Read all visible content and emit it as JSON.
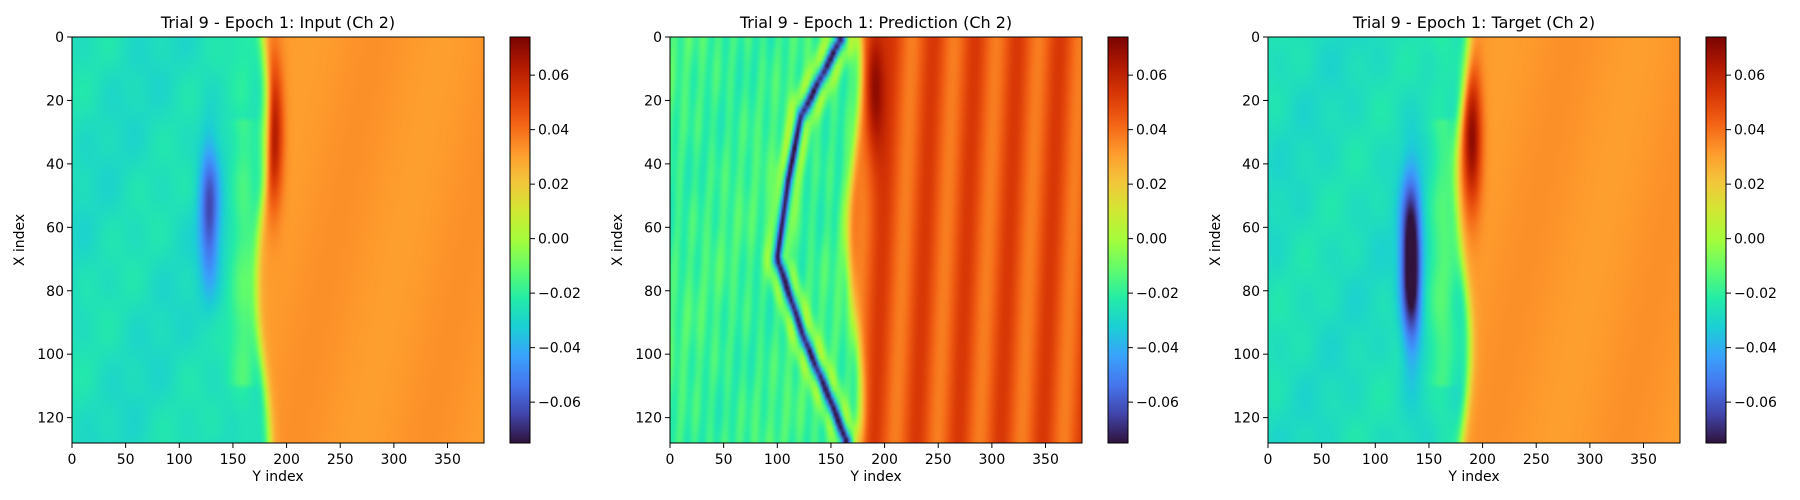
{
  "colors": {
    "turbo_stops": [
      "#30123b",
      "#4145ab",
      "#4675ed",
      "#39a2fc",
      "#1bcfd4",
      "#24eca6",
      "#61fc6c",
      "#a4fc3b",
      "#d1e834",
      "#f3c63a",
      "#fe9b2d",
      "#f36315",
      "#d93806",
      "#b11901",
      "#7a0402"
    ],
    "axis": "#000000",
    "background": "#ffffff"
  },
  "chart_data": [
    {
      "type": "heatmap",
      "title": "Trial 9 - Epoch 1: Input (Ch 2)",
      "xlabel": "Y index",
      "ylabel": "X index",
      "xlim": [
        0,
        384
      ],
      "ylim": [
        128,
        0
      ],
      "xticks": [
        0,
        50,
        100,
        150,
        200,
        250,
        300,
        350
      ],
      "yticks": [
        0,
        20,
        40,
        60,
        80,
        100,
        120
      ],
      "colorbar": {
        "range": [
          -0.075,
          0.074
        ],
        "ticks": [
          "0.06",
          "0.04",
          "0.02",
          "0.00",
          "−0.02",
          "−0.04",
          "−0.06"
        ],
        "tick_values": [
          0.06,
          0.04,
          0.02,
          0.0,
          -0.02,
          -0.04,
          -0.06
        ]
      },
      "field": {
        "background_left": -0.027,
        "background_right": 0.032,
        "front_y": 178,
        "features": [
          {
            "kind": "trough",
            "x_center": 55,
            "y_center": 128,
            "amplitude": -0.035
          },
          {
            "kind": "peak",
            "x_center": 30,
            "y_center": 187,
            "amplitude": 0.04
          },
          {
            "kind": "band",
            "y_center": 160,
            "amplitude": 0.012
          }
        ]
      }
    },
    {
      "type": "heatmap",
      "title": "Trial 9 - Epoch 1: Prediction (Ch 2)",
      "xlabel": "Y index",
      "ylabel": "X index",
      "xlim": [
        0,
        384
      ],
      "ylim": [
        128,
        0
      ],
      "xticks": [
        0,
        50,
        100,
        150,
        200,
        250,
        300,
        350
      ],
      "yticks": [
        0,
        20,
        40,
        60,
        80,
        100,
        120
      ],
      "colorbar": {
        "range": [
          -0.075,
          0.074
        ],
        "ticks": [
          "0.06",
          "0.04",
          "0.02",
          "0.00",
          "−0.02",
          "−0.04",
          "−0.06"
        ],
        "tick_values": [
          0.06,
          0.04,
          0.02,
          0.0,
          -0.02,
          -0.04,
          -0.06
        ]
      },
      "field": {
        "background_left": -0.018,
        "background_right": 0.045,
        "front_y": 172,
        "stripes": true,
        "features": [
          {
            "kind": "filament",
            "path": [
              [
                0,
                160
              ],
              [
                25,
                122
              ],
              [
                45,
                110
              ],
              [
                70,
                100
              ],
              [
                95,
                125
              ],
              [
                115,
                150
              ],
              [
                128,
                165
              ]
            ],
            "amplitude": -0.06
          },
          {
            "kind": "peak",
            "x_center": 15,
            "y_center": 190,
            "amplitude": 0.03
          }
        ]
      }
    },
    {
      "type": "heatmap",
      "title": "Trial 9 - Epoch 1: Target (Ch 2)",
      "xlabel": "Y index",
      "ylabel": "X index",
      "xlim": [
        0,
        384
      ],
      "ylim": [
        128,
        0
      ],
      "xticks": [
        0,
        50,
        100,
        150,
        200,
        250,
        300,
        350
      ],
      "yticks": [
        0,
        20,
        40,
        60,
        80,
        100,
        120
      ],
      "colorbar": {
        "range": [
          -0.075,
          0.074
        ],
        "ticks": [
          "0.06",
          "0.04",
          "0.02",
          "0.00",
          "−0.02",
          "−0.04",
          "−0.06"
        ],
        "tick_values": [
          0.06,
          0.04,
          0.02,
          0.0,
          -0.02,
          -0.04,
          -0.06
        ]
      },
      "field": {
        "background_left": -0.027,
        "background_right": 0.032,
        "front_y": 182,
        "features": [
          {
            "kind": "trough",
            "x_center": 65,
            "y_center": 133,
            "amplitude": -0.045
          },
          {
            "kind": "trough",
            "x_center": 82,
            "y_center": 134,
            "amplitude": -0.03
          },
          {
            "kind": "peak",
            "x_center": 32,
            "y_center": 190,
            "amplitude": 0.04
          },
          {
            "kind": "band",
            "y_center": 163,
            "amplitude": 0.012
          }
        ]
      }
    }
  ]
}
